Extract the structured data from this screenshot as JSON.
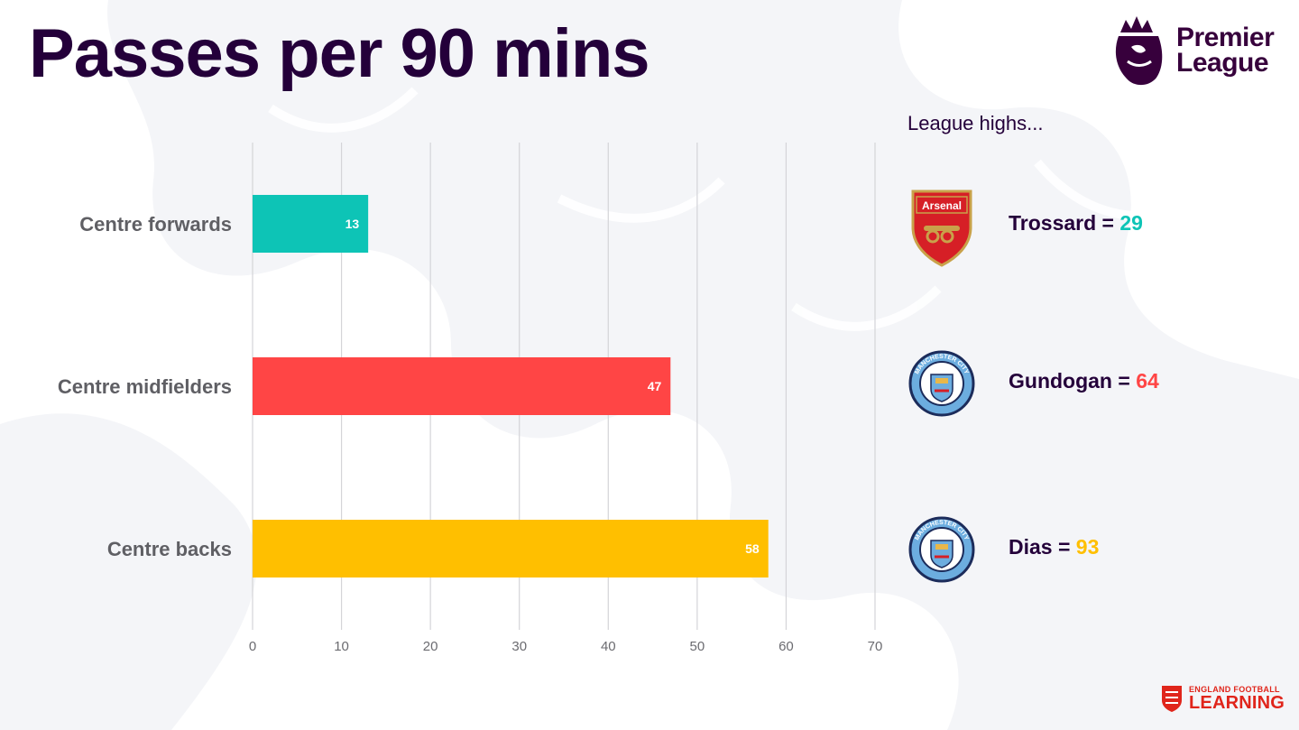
{
  "page": {
    "title": "Passes per 90 mins"
  },
  "logos": {
    "brand_top": [
      "Premier",
      "League"
    ],
    "brand_bottom": [
      "ENGLAND FOOTBALL",
      "LEARNING"
    ]
  },
  "league_highs": {
    "heading": "League highs...",
    "items": [
      {
        "crest_icon": "arsenal-crest-icon",
        "crest_text": "Arsenal",
        "player": "Trossard =",
        "value": "29",
        "color": "#0dc4b6"
      },
      {
        "crest_icon": "man-city-crest-icon",
        "crest_text": "MANCHESTER CITY",
        "player": "Gundogan =",
        "value": "64",
        "color": "#ff4545"
      },
      {
        "crest_icon": "man-city-crest-icon",
        "crest_text": "MANCHESTER CITY",
        "player": "Dias =",
        "value": "93",
        "color": "#ffbf00"
      }
    ]
  },
  "chart_data": {
    "type": "bar",
    "orientation": "horizontal",
    "title": "Passes per 90 mins",
    "categories": [
      "Centre forwards",
      "Centre midfielders",
      "Centre backs"
    ],
    "values": [
      13,
      47,
      58
    ],
    "colors": [
      "#0dc4b6",
      "#ff4545",
      "#ffbf00"
    ],
    "xlim": [
      0,
      70
    ],
    "xticks": [
      0,
      10,
      20,
      30,
      40,
      50,
      60,
      70
    ],
    "grid": true,
    "data_labels": true
  }
}
